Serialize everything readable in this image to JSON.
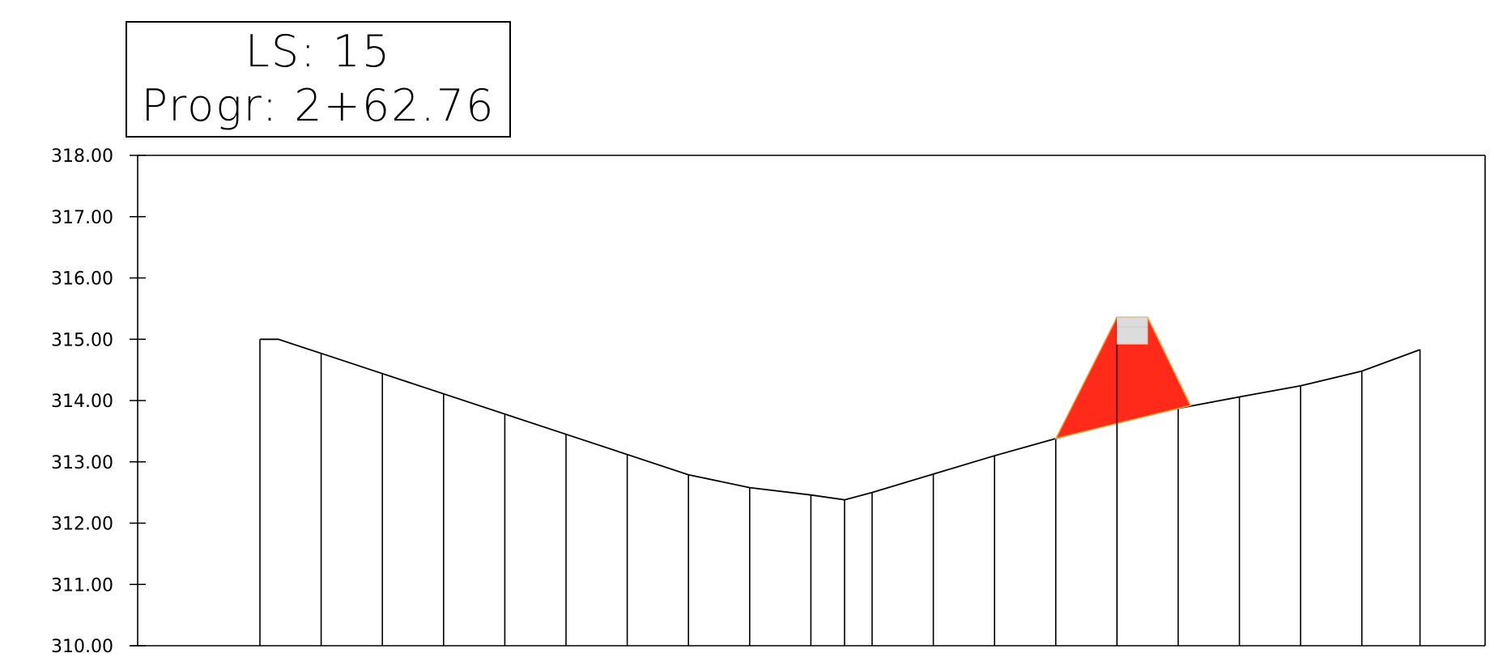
{
  "label": {
    "ls_text": "LS:  15",
    "progr_text": "Progr:  2+62.76"
  },
  "chart_data": {
    "type": "cross-section",
    "y_axis": {
      "ylim": [
        310,
        318
      ],
      "ticks": [
        "310.00",
        "311.00",
        "312.00",
        "313.00",
        "314.00",
        "315.00",
        "316.00",
        "317.00",
        "318.00"
      ]
    },
    "ground_profile": {
      "offsets": [
        0,
        0.6,
        2,
        4,
        6,
        8,
        10,
        12,
        14,
        16,
        18,
        19.1,
        20,
        22,
        24,
        26,
        28,
        30,
        32,
        34,
        36,
        37.9
      ],
      "elevations": [
        315.0,
        315.0,
        314.77,
        314.44,
        314.11,
        313.78,
        313.45,
        313.12,
        312.79,
        312.58,
        312.46,
        312.38,
        312.5,
        312.8,
        313.1,
        313.38,
        313.64,
        313.87,
        314.06,
        314.24,
        314.48,
        314.83
      ]
    },
    "fill_area": {
      "color": "#ff2a1a",
      "outline": "#f2a93b",
      "polygon": [
        [
          26,
          313.38
        ],
        [
          28,
          315.36
        ],
        [
          29,
          315.36
        ],
        [
          30.4,
          313.92
        ]
      ]
    },
    "road_top": {
      "color": "#dcdcdc",
      "rect_offsets": [
        28,
        29
      ],
      "rect_elev": [
        314.92,
        315.36
      ]
    }
  }
}
